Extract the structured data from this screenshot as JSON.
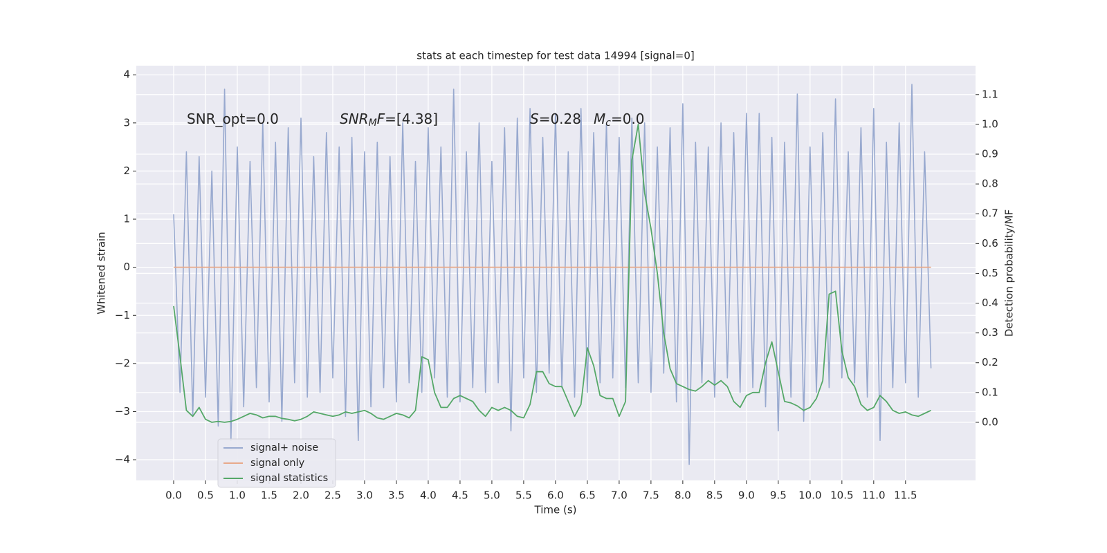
{
  "chart_data": {
    "type": "line",
    "title": "stats at each timestep for test data 14994 [signal=0]",
    "xlabel": "Time (s)",
    "ylabel": "Whitened strain",
    "y2label": "Detection probability/MF",
    "annotations": [
      [
        {
          "text": "SNR_opt=0.0",
          "style": "normal"
        }
      ],
      [
        {
          "text": "SNR",
          "style": "italic"
        },
        {
          "text": "M",
          "style": "italic-sub"
        },
        {
          "text": "F",
          "style": "italic"
        },
        {
          "text": "=[4.38]",
          "style": "normal"
        }
      ],
      [
        {
          "text": "S",
          "style": "italic"
        },
        {
          "text": "=0.28",
          "style": "normal"
        }
      ],
      [
        {
          "text": "M",
          "style": "italic"
        },
        {
          "text": "c",
          "style": "italic-sub"
        },
        {
          "text": "=0.0",
          "style": "normal"
        }
      ]
    ],
    "x": [
      0,
      0.1,
      0.2,
      0.3,
      0.4,
      0.5,
      0.6,
      0.7,
      0.8,
      0.9,
      1,
      1.1,
      1.2,
      1.3,
      1.4,
      1.5,
      1.6,
      1.7,
      1.8,
      1.9,
      2,
      2.1,
      2.2,
      2.3,
      2.4,
      2.5,
      2.6,
      2.7,
      2.8,
      2.9,
      3,
      3.1,
      3.2,
      3.3,
      3.4,
      3.5,
      3.6,
      3.7,
      3.8,
      3.9,
      4,
      4.1,
      4.2,
      4.3,
      4.4,
      4.5,
      4.6,
      4.7,
      4.8,
      4.9,
      5,
      5.1,
      5.2,
      5.3,
      5.4,
      5.5,
      5.6,
      5.7,
      5.8,
      5.9,
      6,
      6.1,
      6.2,
      6.3,
      6.4,
      6.5,
      6.6,
      6.7,
      6.8,
      6.9,
      7,
      7.1,
      7.2,
      7.3,
      7.4,
      7.5,
      7.6,
      7.7,
      7.8,
      7.9,
      8,
      8.1,
      8.2,
      8.3,
      8.4,
      8.5,
      8.6,
      8.7,
      8.8,
      8.9,
      9,
      9.1,
      9.2,
      9.3,
      9.4,
      9.5,
      9.6,
      9.7,
      9.8,
      9.9,
      10,
      10.1,
      10.2,
      10.3,
      10.4,
      10.5,
      10.6,
      10.7,
      10.8,
      10.9,
      11,
      11.1,
      11.2,
      11.3,
      11.4,
      11.5,
      11.6,
      11.7,
      11.8,
      11.9
    ],
    "series": [
      {
        "name": "signal+ noise",
        "color": "#98a9cf",
        "axis": "y",
        "values": [
          1.1,
          -2.6,
          2.4,
          -3.1,
          2.3,
          -2.7,
          2.0,
          -3.3,
          3.7,
          -3.6,
          2.5,
          -2.9,
          2.2,
          -2.5,
          3.0,
          -2.8,
          2.6,
          -3.2,
          2.9,
          -2.4,
          3.1,
          -2.7,
          2.3,
          -2.6,
          2.8,
          -2.3,
          2.5,
          -3.1,
          2.7,
          -3.6,
          2.4,
          -2.9,
          2.6,
          -2.5,
          2.3,
          -2.8,
          3.0,
          -2.4,
          2.2,
          -2.6,
          2.9,
          -2.3,
          2.5,
          -2.7,
          3.7,
          -2.8,
          2.4,
          -2.5,
          3.0,
          -2.6,
          2.2,
          -2.4,
          2.9,
          -3.4,
          3.1,
          -2.3,
          3.3,
          -2.6,
          2.7,
          -2.2,
          3.2,
          -2.5,
          2.4,
          -2.7,
          3.3,
          -2.6,
          2.8,
          -2.4,
          3.0,
          -2.3,
          2.7,
          -2.5,
          3.1,
          -2.4,
          3.0,
          -2.6,
          2.5,
          -2.2,
          2.9,
          -2.8,
          3.4,
          -4.1,
          2.6,
          -2.4,
          2.5,
          -2.7,
          3.0,
          -2.3,
          2.8,
          -2.6,
          3.2,
          -2.5,
          3.2,
          -2.9,
          2.7,
          -3.4,
          2.6,
          -2.7,
          3.6,
          -3.2,
          2.5,
          -2.6,
          2.8,
          -2.5,
          3.5,
          -2.3,
          2.4,
          -2.4,
          2.9,
          -2.7,
          3.3,
          -3.6,
          2.6,
          -2.5,
          3.0,
          -2.4,
          3.8,
          -2.7,
          2.4,
          -2.1
        ]
      },
      {
        "name": "signal only",
        "color": "#e8a98a",
        "axis": "y",
        "values": [
          0,
          0,
          0,
          0,
          0,
          0,
          0,
          0,
          0,
          0,
          0,
          0,
          0,
          0,
          0,
          0,
          0,
          0,
          0,
          0,
          0,
          0,
          0,
          0,
          0,
          0,
          0,
          0,
          0,
          0,
          0,
          0,
          0,
          0,
          0,
          0,
          0,
          0,
          0,
          0,
          0,
          0,
          0,
          0,
          0,
          0,
          0,
          0,
          0,
          0,
          0,
          0,
          0,
          0,
          0,
          0,
          0,
          0,
          0,
          0,
          0,
          0,
          0,
          0,
          0,
          0,
          0,
          0,
          0,
          0,
          0,
          0,
          0,
          0,
          0,
          0,
          0,
          0,
          0,
          0,
          0,
          0,
          0,
          0,
          0,
          0,
          0,
          0,
          0,
          0,
          0,
          0,
          0,
          0,
          0,
          0,
          0,
          0,
          0,
          0,
          0,
          0,
          0,
          0,
          0,
          0,
          0,
          0,
          0,
          0,
          0,
          0,
          0,
          0,
          0,
          0,
          0,
          0,
          0,
          0
        ]
      },
      {
        "name": "signal statistics",
        "color": "#55a868",
        "axis": "y2",
        "values": [
          0.39,
          0.22,
          0.04,
          0.02,
          0.05,
          0.01,
          0.0,
          0.003,
          0.0,
          0.003,
          0.01,
          0.02,
          0.03,
          0.025,
          0.015,
          0.02,
          0.02,
          0.013,
          0.01,
          0.005,
          0.01,
          0.02,
          0.035,
          0.03,
          0.025,
          0.02,
          0.025,
          0.035,
          0.03,
          0.035,
          0.04,
          0.03,
          0.015,
          0.01,
          0.02,
          0.03,
          0.025,
          0.015,
          0.04,
          0.22,
          0.21,
          0.1,
          0.05,
          0.05,
          0.08,
          0.09,
          0.08,
          0.07,
          0.04,
          0.02,
          0.05,
          0.04,
          0.05,
          0.04,
          0.02,
          0.015,
          0.06,
          0.17,
          0.17,
          0.13,
          0.12,
          0.12,
          0.07,
          0.02,
          0.06,
          0.25,
          0.19,
          0.09,
          0.08,
          0.08,
          0.02,
          0.07,
          0.88,
          1.0,
          0.77,
          0.65,
          0.5,
          0.3,
          0.18,
          0.13,
          0.12,
          0.11,
          0.105,
          0.12,
          0.14,
          0.125,
          0.14,
          0.12,
          0.07,
          0.05,
          0.09,
          0.1,
          0.1,
          0.2,
          0.27,
          0.17,
          0.07,
          0.065,
          0.055,
          0.04,
          0.05,
          0.08,
          0.14,
          0.43,
          0.44,
          0.24,
          0.15,
          0.12,
          0.06,
          0.04,
          0.05,
          0.09,
          0.07,
          0.04,
          0.03,
          0.035,
          0.025,
          0.02,
          0.03,
          0.04
        ]
      }
    ],
    "xlim": [
      -0.587,
      12.6
    ],
    "xticks": [
      {
        "value": 0,
        "label": "0.0"
      },
      0.5,
      {
        "value": 1,
        "label": "1.0"
      },
      1.5,
      {
        "value": 2,
        "label": "2.0"
      },
      2.5,
      {
        "value": 3,
        "label": "3.0"
      },
      3.5,
      {
        "value": 4,
        "label": "4.0"
      },
      4.5,
      {
        "value": 5,
        "label": "5.0"
      },
      5.5,
      {
        "value": 6,
        "label": "6.0"
      },
      6.5,
      {
        "value": 7,
        "label": "7.0"
      },
      7.5,
      {
        "value": 8,
        "label": "8.0"
      },
      8.5,
      {
        "value": 9,
        "label": "9.0"
      },
      9.5,
      {
        "value": 10,
        "label": "10.0"
      },
      10.5,
      {
        "value": 11,
        "label": "11.0"
      },
      11.5
    ],
    "ylim": [
      -4.43,
      4.19
    ],
    "yticks": [
      {
        "value": -4,
        "label": "−4"
      },
      {
        "value": -3,
        "label": "−3"
      },
      {
        "value": -2,
        "label": "−2"
      },
      {
        "value": -1,
        "label": "−1"
      },
      0,
      1,
      2,
      3,
      4
    ],
    "y2lim": [
      -0.195,
      1.197
    ],
    "y2ticks": [
      {
        "value": 0,
        "label": "0.0"
      },
      0.1,
      0.2,
      0.3,
      0.4,
      0.5,
      0.6,
      0.7,
      0.8,
      0.9,
      {
        "value": 1,
        "label": "1.0"
      },
      1.1
    ],
    "grid": true,
    "legend": "lower left"
  }
}
